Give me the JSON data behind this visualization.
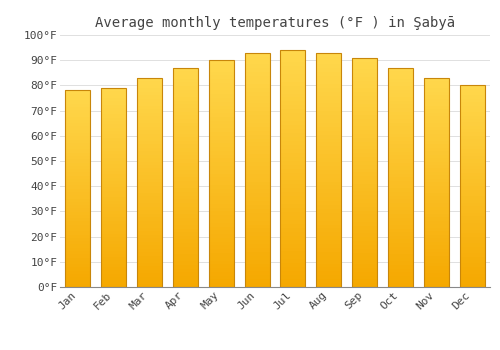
{
  "title": "Average monthly temperatures (°F ) in Şabyā",
  "months": [
    "Jan",
    "Feb",
    "Mar",
    "Apr",
    "May",
    "Jun",
    "Jul",
    "Aug",
    "Sep",
    "Oct",
    "Nov",
    "Dec"
  ],
  "values": [
    78,
    79,
    83,
    87,
    90,
    93,
    94,
    93,
    91,
    87,
    83,
    80
  ],
  "bar_color_bottom": "#F5A800",
  "bar_color_top": "#FFD84D",
  "bar_edge_color": "#C8860A",
  "background_color": "#FFFFFF",
  "plot_bg_color": "#FFFFFF",
  "grid_color": "#E0E0E0",
  "text_color": "#444444",
  "ylim": [
    0,
    100
  ],
  "yticks": [
    0,
    10,
    20,
    30,
    40,
    50,
    60,
    70,
    80,
    90,
    100
  ],
  "ytick_labels": [
    "0°F",
    "10°F",
    "20°F",
    "30°F",
    "40°F",
    "50°F",
    "60°F",
    "70°F",
    "80°F",
    "90°F",
    "100°F"
  ],
  "title_fontsize": 10,
  "tick_fontsize": 8,
  "font_family": "monospace",
  "bar_width": 0.7
}
